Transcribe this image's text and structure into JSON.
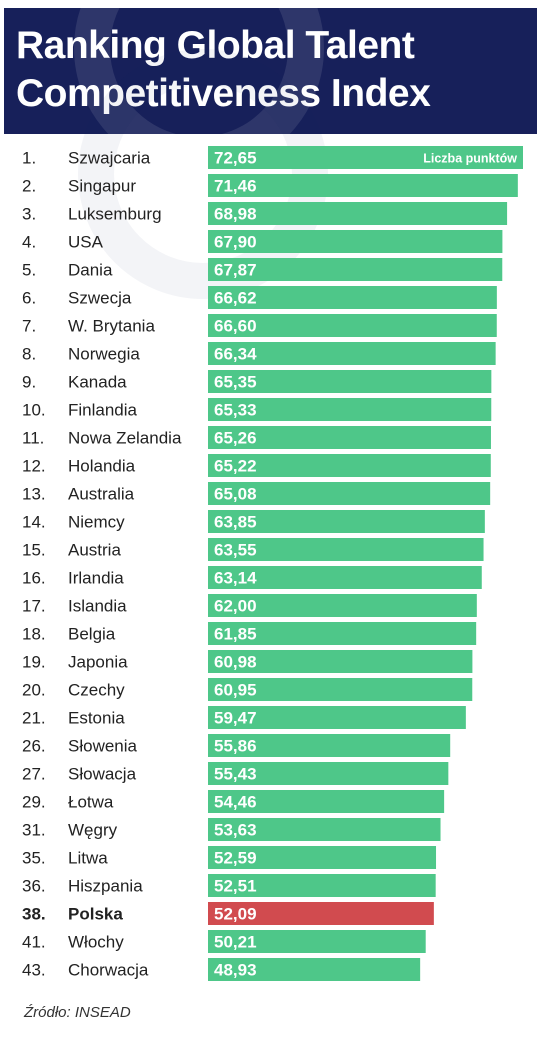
{
  "header": {
    "title_line1": "Ranking Global Talent",
    "title_line2": "Competitiveness Index"
  },
  "colors": {
    "header_bg": "#17205a",
    "bar": "#4ec789",
    "highlight_bar": "#d14b4f",
    "highlight_text": "#d14b4f"
  },
  "chart_data": {
    "type": "bar",
    "orientation": "horizontal",
    "legend": "Liczba punktów",
    "ranks": [
      "1.",
      "2.",
      "3.",
      "4.",
      "5.",
      "6.",
      "7.",
      "8.",
      "9.",
      "10.",
      "11.",
      "12.",
      "13.",
      "14.",
      "15.",
      "16.",
      "17.",
      "18.",
      "19.",
      "20.",
      "21.",
      "26.",
      "27.",
      "29.",
      "31.",
      "35.",
      "36.",
      "38.",
      "41.",
      "43."
    ],
    "categories": [
      "Szwajcaria",
      "Singapur",
      "Luksemburg",
      "USA",
      "Dania",
      "Szwecja",
      "W. Brytania",
      "Norwegia",
      "Kanada",
      "Finlandia",
      "Nowa Zelandia",
      "Holandia",
      "Australia",
      "Niemcy",
      "Austria",
      "Irlandia",
      "Islandia",
      "Belgia",
      "Japonia",
      "Czechy",
      "Estonia",
      "Słowenia",
      "Słowacja",
      "Łotwa",
      "Węgry",
      "Litwa",
      "Hiszpania",
      "Polska",
      "Włochy",
      "Chorwacja"
    ],
    "values": [
      72.65,
      71.46,
      68.98,
      67.9,
      67.87,
      66.62,
      66.6,
      66.34,
      65.35,
      65.33,
      65.26,
      65.22,
      65.08,
      63.85,
      63.55,
      63.14,
      62.0,
      61.85,
      60.98,
      60.95,
      59.47,
      55.86,
      55.43,
      54.46,
      53.63,
      52.59,
      52.51,
      52.09,
      50.21,
      48.93
    ],
    "value_labels": [
      "72,65",
      "71,46",
      "68,98",
      "67,90",
      "67,87",
      "66,62",
      "66,60",
      "66,34",
      "65,35",
      "65,33",
      "65,26",
      "65,22",
      "65,08",
      "63,85",
      "63,55",
      "63,14",
      "62,00",
      "61,85",
      "60,98",
      "60,95",
      "59,47",
      "55,86",
      "55,43",
      "54,46",
      "53,63",
      "52,59",
      "52,51",
      "52,09",
      "50,21",
      "48,93"
    ],
    "highlight": "Polska",
    "xlim": [
      0,
      72.65
    ]
  },
  "source": "Źródło:  INSEAD"
}
